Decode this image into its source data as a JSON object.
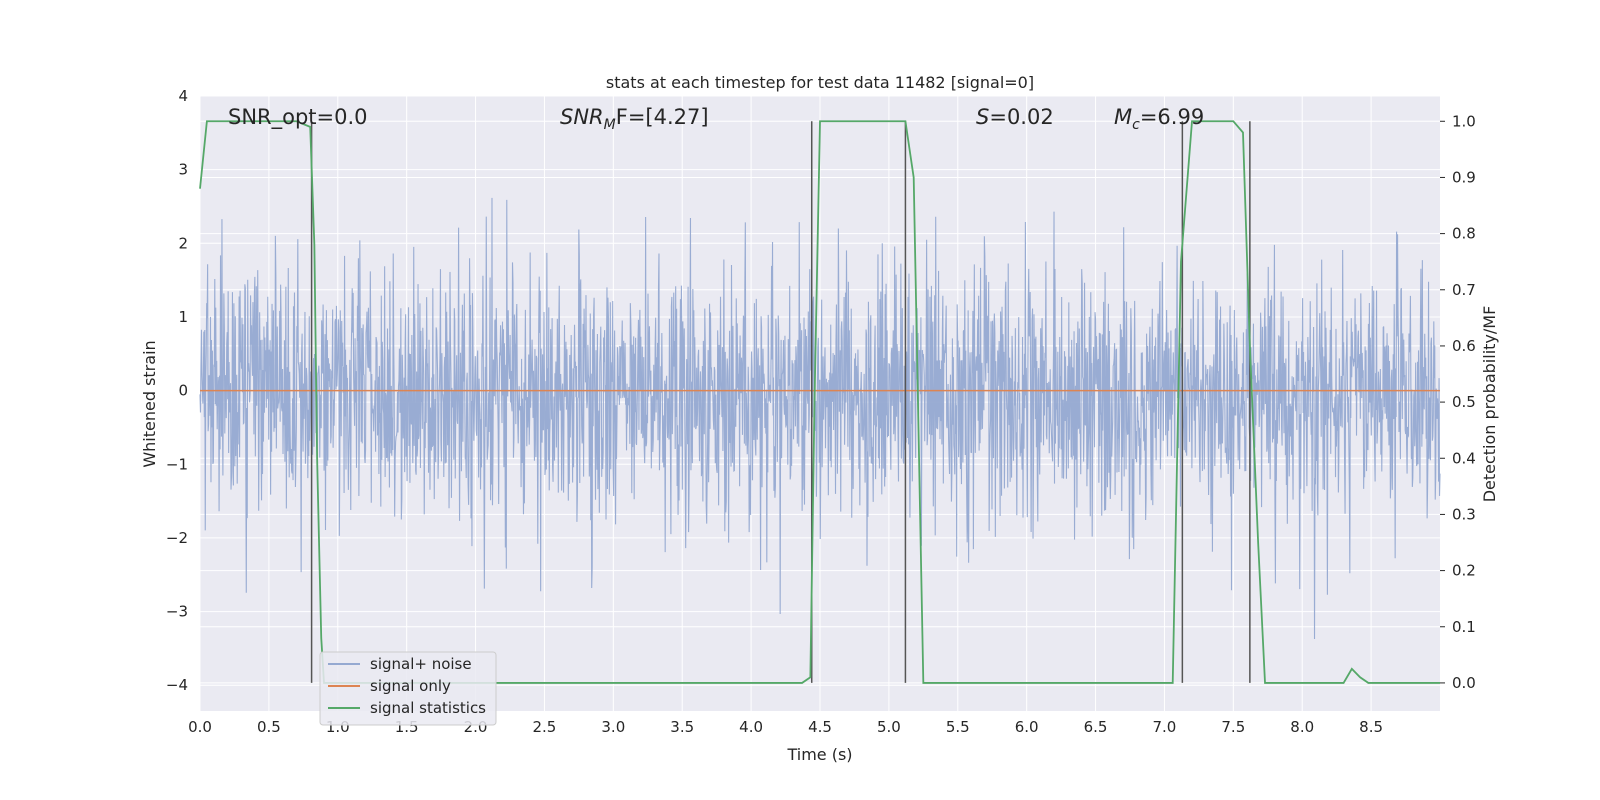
{
  "chart_data": {
    "type": "line",
    "title": "stats at each timestep for test data 11482 [signal=0]",
    "xlabel": "Time (s)",
    "ylabel_left": "Whitened strain",
    "ylabel_right": "Detection probability/MF",
    "xlim": [
      0.0,
      9.0
    ],
    "ylim_left": [
      -4.35,
      4.0
    ],
    "ylim_right": [
      -0.05,
      1.045
    ],
    "x_ticks": [
      "0.0",
      "0.5",
      "1.0",
      "1.5",
      "2.0",
      "2.5",
      "3.0",
      "3.5",
      "4.0",
      "4.5",
      "5.0",
      "5.5",
      "6.0",
      "6.5",
      "7.0",
      "7.5",
      "8.0",
      "8.5"
    ],
    "y_ticks_left": [
      "4",
      "3",
      "2",
      "1",
      "0",
      "−1",
      "−2",
      "−3",
      "−4"
    ],
    "y_ticks_right": [
      "1.0",
      "0.9",
      "0.8",
      "0.7",
      "0.6",
      "0.5",
      "0.4",
      "0.3",
      "0.2",
      "0.1",
      "0.0"
    ],
    "grid": true,
    "legend_position": "lower-left",
    "annotations": {
      "snr_opt": "SNR_opt=0.0",
      "snr_mf_italic": "SNR",
      "snr_mf_sub": "M",
      "snr_mf_rest": "F=[4.27]",
      "s_italic": "S",
      "s_rest": "=0.02",
      "mc_italic": "M",
      "mc_sub": "c",
      "mc_rest": "=6.99"
    },
    "series": [
      {
        "name": "signal+ noise",
        "axis": "left",
        "color": "#95a9d1",
        "description_level": "noise band",
        "noise_std": 0.85,
        "noise_max_abs": 3.6
      },
      {
        "name": "signal only",
        "axis": "left",
        "color": "#dd8452",
        "x": [
          0.0,
          9.0
        ],
        "y": [
          0.0,
          0.0
        ]
      },
      {
        "name": "signal statistics",
        "axis": "right",
        "color": "#55a868",
        "x": [
          0.0,
          0.05,
          0.1,
          0.15,
          0.4,
          0.7,
          0.8,
          0.83,
          0.85,
          0.88,
          0.9,
          1.0,
          2.0,
          3.0,
          4.0,
          4.37,
          4.43,
          4.46,
          4.5,
          4.6,
          5.0,
          5.12,
          5.18,
          5.25,
          5.3,
          6.0,
          7.0,
          7.06,
          7.12,
          7.2,
          7.5,
          7.57,
          7.62,
          7.68,
          7.73,
          7.77,
          7.8,
          8.3,
          8.36,
          8.42,
          8.48,
          9.0
        ],
        "y": [
          0.88,
          1.0,
          1.0,
          1.0,
          1.0,
          1.0,
          0.99,
          0.78,
          0.4,
          0.08,
          0.0,
          0.0,
          0.0,
          0.0,
          0.0,
          0.0,
          0.01,
          0.5,
          1.0,
          1.0,
          1.0,
          1.0,
          0.9,
          0.0,
          0.0,
          0.0,
          0.0,
          0.0,
          0.75,
          1.0,
          1.0,
          0.98,
          0.6,
          0.25,
          0.0,
          0.0,
          0.0,
          0.0,
          0.025,
          0.01,
          0.0,
          0.0
        ]
      }
    ],
    "vertical_lines": [
      0.81,
      4.44,
      5.12,
      7.13,
      7.62
    ],
    "vertical_line_color": "#555555"
  }
}
